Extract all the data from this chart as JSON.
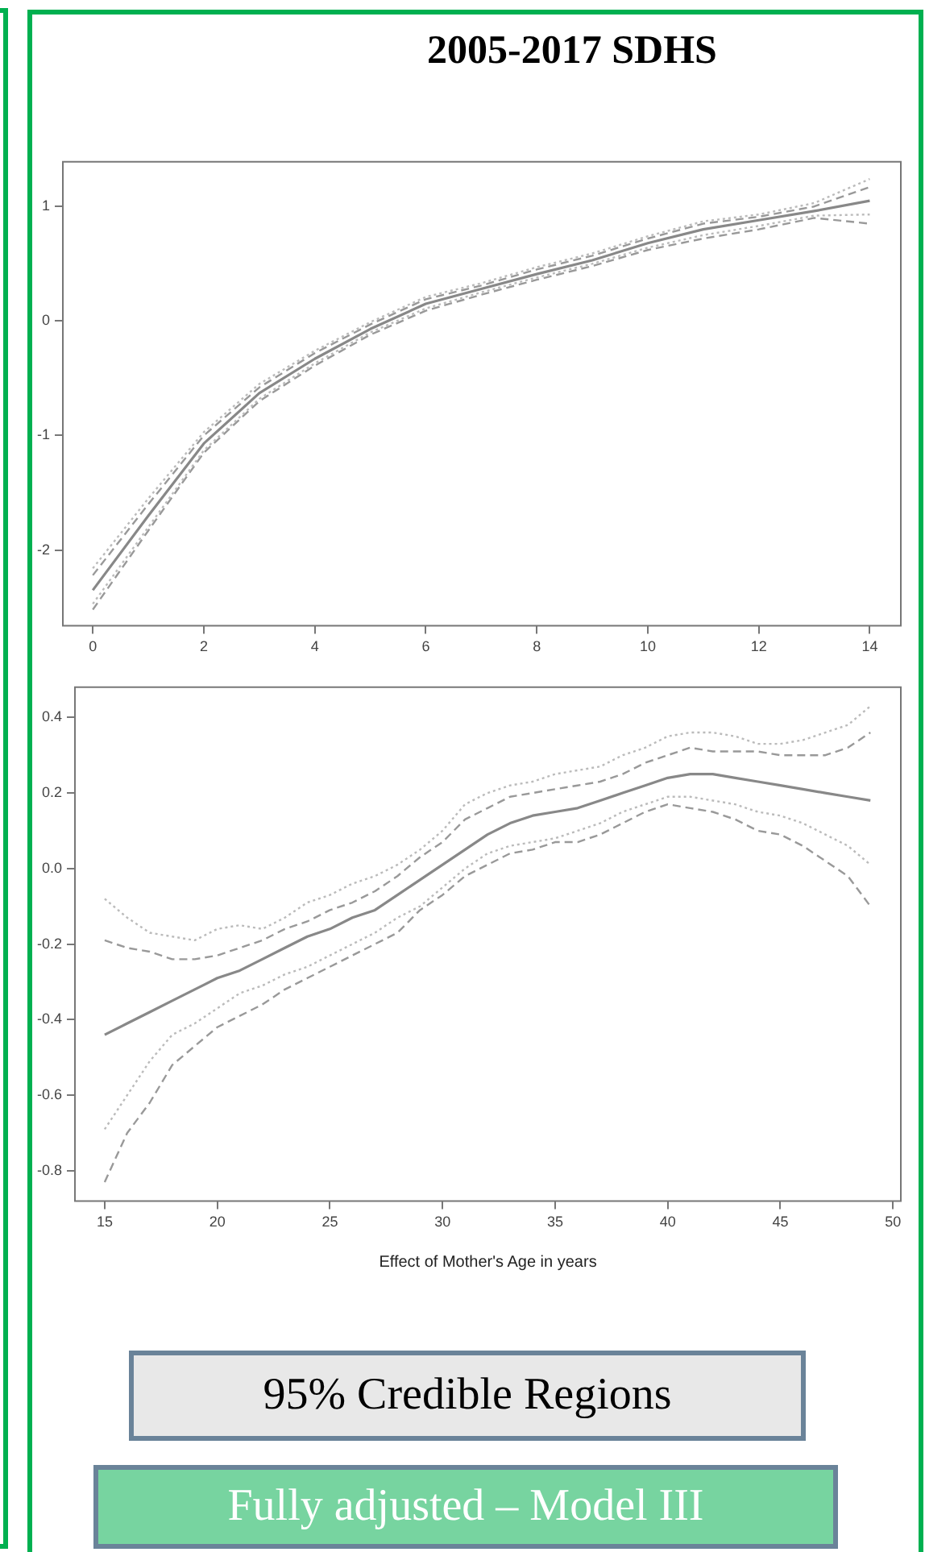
{
  "chart_data": [
    {
      "type": "line",
      "title": "2005-2017 SDHS",
      "x": [
        0,
        1,
        2,
        3,
        4,
        5,
        6,
        7,
        8,
        9,
        10,
        11,
        12,
        13,
        14
      ],
      "xlim": [
        -0.54,
        14.56
      ],
      "xticks": [
        0,
        2,
        4,
        6,
        8,
        10,
        12,
        14
      ],
      "ylim": [
        -2.66,
        1.39
      ],
      "yticks": [
        -2,
        -1,
        0,
        1
      ],
      "grid": false,
      "legend": false,
      "marker": "none",
      "series": [
        {
          "color": "#bbbbbb",
          "line_style": "dotted",
          "values": [
            -2.16,
            -1.55,
            -0.97,
            -0.55,
            -0.26,
            -0.01,
            0.21,
            0.33,
            0.47,
            0.59,
            0.74,
            0.87,
            0.93,
            1.03,
            1.24
          ]
        },
        {
          "color": "#999999",
          "line_style": "dashed",
          "values": [
            -2.22,
            -1.6,
            -1.0,
            -0.58,
            -0.28,
            -0.03,
            0.19,
            0.31,
            0.45,
            0.57,
            0.72,
            0.85,
            0.91,
            1.0,
            1.17
          ]
        },
        {
          "color": "#888888",
          "line_style": "solid",
          "values": [
            -2.35,
            -1.7,
            -1.07,
            -0.63,
            -0.33,
            -0.07,
            0.15,
            0.28,
            0.41,
            0.53,
            0.68,
            0.8,
            0.88,
            0.96,
            1.05
          ]
        },
        {
          "color": "#bbbbbb",
          "line_style": "dotted",
          "values": [
            -2.47,
            -1.8,
            -1.13,
            -0.68,
            -0.37,
            -0.1,
            0.11,
            0.25,
            0.38,
            0.5,
            0.64,
            0.75,
            0.83,
            0.92,
            0.93
          ]
        },
        {
          "color": "#999999",
          "line_style": "dashed",
          "values": [
            -2.52,
            -1.83,
            -1.15,
            -0.7,
            -0.39,
            -0.12,
            0.09,
            0.23,
            0.36,
            0.48,
            0.62,
            0.72,
            0.8,
            0.9,
            0.85
          ]
        }
      ]
    },
    {
      "type": "line",
      "xlabel": "Effect of Mother's Age in years",
      "x": [
        15,
        16,
        17,
        18,
        19,
        20,
        21,
        22,
        23,
        24,
        25,
        26,
        27,
        28,
        29,
        30,
        31,
        32,
        33,
        34,
        35,
        36,
        37,
        38,
        39,
        40,
        41,
        42,
        43,
        44,
        45,
        46,
        47,
        48,
        49
      ],
      "xlim": [
        13.68,
        50.35
      ],
      "xticks": [
        15,
        20,
        25,
        30,
        35,
        40,
        45,
        50
      ],
      "ylim": [
        -0.88,
        0.48
      ],
      "yticks": [
        {
          "value": -0.8,
          "label": "-0.8"
        },
        {
          "value": -0.6,
          "label": "-0.6"
        },
        {
          "value": -0.4,
          "label": "-0.4"
        },
        {
          "value": -0.2,
          "label": "-0.2"
        },
        {
          "value": 0,
          "label": "0.0"
        },
        {
          "value": 0.2,
          "label": "0.2"
        },
        {
          "value": 0.4,
          "label": "0.4"
        }
      ],
      "grid": false,
      "legend": false,
      "marker": "none",
      "annotations": [
        "95% Credible Regions",
        "Fully adjusted – Model III"
      ],
      "series": [
        {
          "color": "#bbbbbb",
          "line_style": "dotted",
          "values": [
            -0.08,
            -0.13,
            -0.17,
            -0.18,
            -0.19,
            -0.16,
            -0.15,
            -0.16,
            -0.13,
            -0.09,
            -0.07,
            -0.04,
            -0.02,
            0.01,
            0.05,
            0.1,
            0.17,
            0.2,
            0.22,
            0.23,
            0.25,
            0.26,
            0.27,
            0.3,
            0.32,
            0.35,
            0.36,
            0.36,
            0.35,
            0.33,
            0.33,
            0.34,
            0.36,
            0.38,
            0.43
          ]
        },
        {
          "color": "#999999",
          "line_style": "dashed",
          "values": [
            -0.19,
            -0.21,
            -0.22,
            -0.24,
            -0.24,
            -0.23,
            -0.21,
            -0.19,
            -0.16,
            -0.14,
            -0.11,
            -0.09,
            -0.06,
            -0.02,
            0.03,
            0.07,
            0.13,
            0.16,
            0.19,
            0.2,
            0.21,
            0.22,
            0.23,
            0.25,
            0.28,
            0.3,
            0.32,
            0.31,
            0.31,
            0.31,
            0.3,
            0.3,
            0.3,
            0.32,
            0.36
          ]
        },
        {
          "color": "#888888",
          "line_style": "solid",
          "values": [
            -0.44,
            -0.41,
            -0.38,
            -0.35,
            -0.32,
            -0.29,
            -0.27,
            -0.24,
            -0.21,
            -0.18,
            -0.16,
            -0.13,
            -0.11,
            -0.07,
            -0.03,
            0.01,
            0.05,
            0.09,
            0.12,
            0.14,
            0.15,
            0.16,
            0.18,
            0.2,
            0.22,
            0.24,
            0.25,
            0.25,
            0.24,
            0.23,
            0.22,
            0.21,
            0.2,
            0.19,
            0.18
          ]
        },
        {
          "color": "#bbbbbb",
          "line_style": "dotted",
          "values": [
            -0.69,
            -0.6,
            -0.51,
            -0.44,
            -0.41,
            -0.37,
            -0.33,
            -0.31,
            -0.28,
            -0.26,
            -0.23,
            -0.2,
            -0.17,
            -0.13,
            -0.1,
            -0.05,
            0,
            0.04,
            0.06,
            0.07,
            0.08,
            0.1,
            0.12,
            0.15,
            0.17,
            0.19,
            0.19,
            0.18,
            0.17,
            0.15,
            0.14,
            0.12,
            0.09,
            0.06,
            0.01
          ]
        },
        {
          "color": "#999999",
          "line_style": "dashed",
          "values": [
            -0.83,
            -0.7,
            -0.62,
            -0.52,
            -0.47,
            -0.42,
            -0.39,
            -0.36,
            -0.32,
            -0.29,
            -0.26,
            -0.23,
            -0.2,
            -0.17,
            -0.11,
            -0.07,
            -0.02,
            0.01,
            0.04,
            0.05,
            0.07,
            0.07,
            0.09,
            0.12,
            0.15,
            0.17,
            0.16,
            0.15,
            0.13,
            0.1,
            0.09,
            0.06,
            0.02,
            -0.02,
            -0.1
          ]
        }
      ]
    }
  ]
}
